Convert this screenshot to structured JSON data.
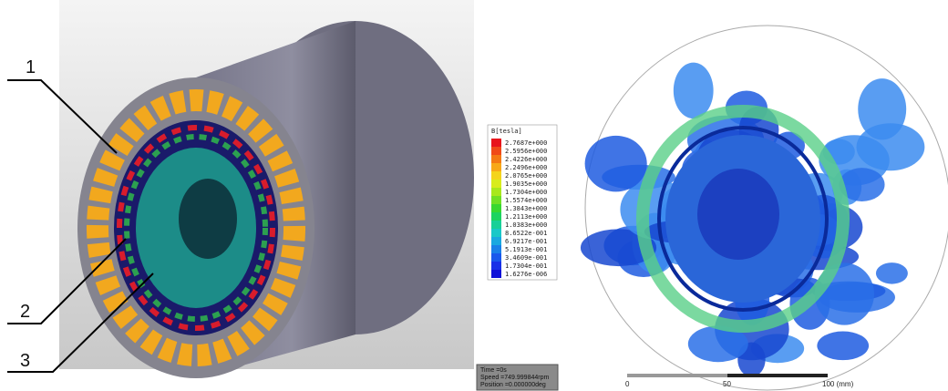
{
  "left_figure": {
    "callouts": [
      "1",
      "2",
      "3"
    ]
  },
  "legend": {
    "title": "B[tesla]",
    "entries": [
      {
        "label": "2.7687e+000",
        "color": "#e8141c"
      },
      {
        "label": "2.5956e+000",
        "color": "#f04a18"
      },
      {
        "label": "2.4226e+000",
        "color": "#f47a14"
      },
      {
        "label": "2.2496e+000",
        "color": "#f8a818"
      },
      {
        "label": "2.0765e+000",
        "color": "#f4d41c"
      },
      {
        "label": "1.9035e+000",
        "color": "#d8ec1c"
      },
      {
        "label": "1.7304e+000",
        "color": "#a8e81c"
      },
      {
        "label": "1.5574e+000",
        "color": "#70e024"
      },
      {
        "label": "1.3843e+000",
        "color": "#38d830"
      },
      {
        "label": "1.2113e+000",
        "color": "#1cd460"
      },
      {
        "label": "1.0383e+000",
        "color": "#18d098"
      },
      {
        "label": "8.6522e-001",
        "color": "#18c8c8"
      },
      {
        "label": "6.9217e-001",
        "color": "#18a8e0"
      },
      {
        "label": "5.1913e-001",
        "color": "#1880e8"
      },
      {
        "label": "3.4609e-001",
        "color": "#1858ec"
      },
      {
        "label": "1.7304e-001",
        "color": "#1830e8"
      },
      {
        "label": "1.6276e-006",
        "color": "#1010d8"
      }
    ]
  },
  "status_box": {
    "lines": [
      "Time =0s",
      "Speed =749.999844rpm",
      "Position =0.000000deg"
    ]
  },
  "scale_bar": {
    "labels": [
      "0",
      "50",
      "100 (mm)"
    ]
  }
}
